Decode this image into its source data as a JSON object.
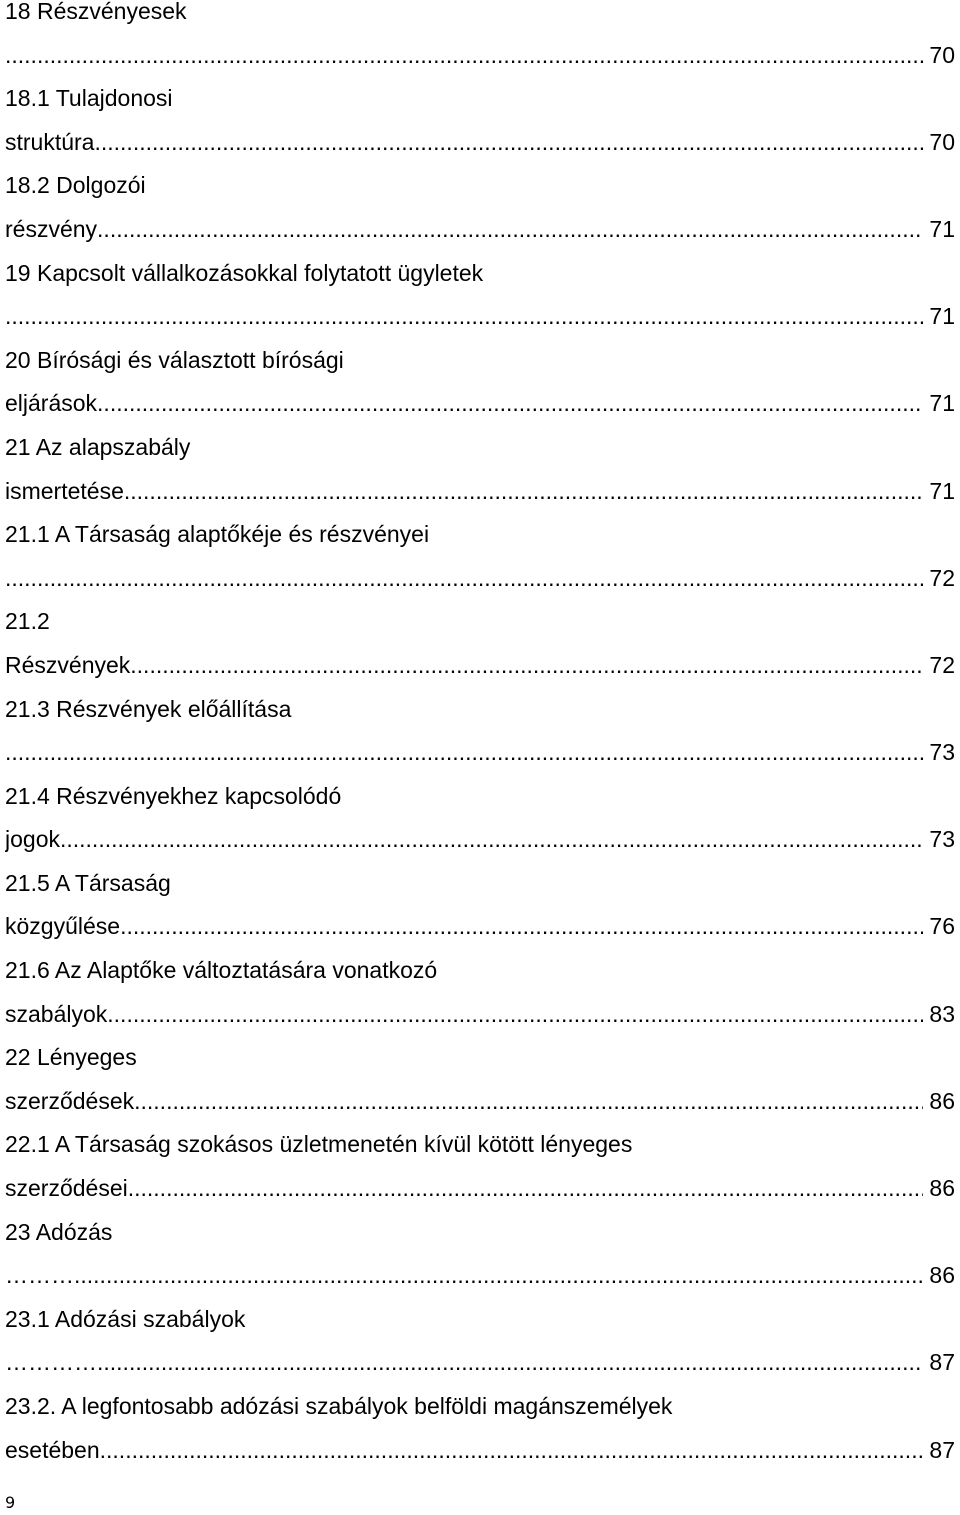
{
  "toc": {
    "entries": [
      {
        "text": "18 Részvényesek",
        "trailing": "",
        "page": ""
      },
      {
        "text": "",
        "trailing": "",
        "page": "70"
      },
      {
        "text": "18.1 Tulajdonosi",
        "trailing": "",
        "page": ""
      },
      {
        "text": "struktúra",
        "trailing": "",
        "page": "70"
      },
      {
        "text": "18.2 Dolgozói",
        "trailing": "",
        "page": ""
      },
      {
        "text": "részvény",
        "trailing": "",
        "page": "71"
      },
      {
        "text": "19 Kapcsolt vállalkozásokkal folytatott ügyletek",
        "trailing": "",
        "page": ""
      },
      {
        "text": "",
        "trailing": "",
        "page": "71"
      },
      {
        "text": "20 Bírósági és választott bírósági",
        "trailing": "",
        "page": ""
      },
      {
        "text": "eljárások",
        "trailing": "",
        "page": "71"
      },
      {
        "text": "21 Az alapszabály",
        "trailing": "",
        "page": ""
      },
      {
        "text": "ismertetése",
        "trailing": "",
        "page": "71"
      },
      {
        "text": "21.1 A Társaság alaptőkéje és részvényei",
        "trailing": "",
        "page": ""
      },
      {
        "text": "",
        "trailing": "",
        "page": "72"
      },
      {
        "text": "21.2",
        "trailing": "",
        "page": ""
      },
      {
        "text": "Részvények",
        "trailing": "",
        "page": "72"
      },
      {
        "text": "21.3 Részvények előállítása",
        "trailing": "",
        "page": ""
      },
      {
        "text": "",
        "trailing": "",
        "page": "73"
      },
      {
        "text": "21.4 Részvényekhez kapcsolódó",
        "trailing": "",
        "page": ""
      },
      {
        "text": "jogok",
        "trailing": "",
        "page": "73"
      },
      {
        "text": "21.5 A Társaság",
        "trailing": "",
        "page": ""
      },
      {
        "text": "közgyűlése",
        "trailing": "",
        "page": "76"
      },
      {
        "text": "21.6 Az Alaptőke változtatására vonatkozó",
        "trailing": "",
        "page": ""
      },
      {
        "text": "szabályok",
        "trailing": "",
        "page": "83"
      },
      {
        "text": "22 Lényeges",
        "trailing": "",
        "page": ""
      },
      {
        "text": "szerződések",
        "trailing": "",
        "page": "86"
      },
      {
        "text": "22.1 A Társaság szokásos üzletmenetén kívül kötött lényeges",
        "trailing": "",
        "page": ""
      },
      {
        "text": "szerződései",
        "trailing": "",
        "page": "86"
      },
      {
        "text": "23 Adózás",
        "trailing": "",
        "page": ""
      },
      {
        "text": "………",
        "trailing": "",
        "page": "86"
      },
      {
        "text": "23.1 Adózási szabályok",
        "trailing": "",
        "page": ""
      },
      {
        "text": "…………",
        "trailing": "",
        "page": "87"
      },
      {
        "text": "23.2. A legfontosabb adózási szabályok belföldi magánszemélyek",
        "trailing": "",
        "page": ""
      },
      {
        "text": "esetében",
        "trailing": "",
        "page": "87"
      }
    ]
  },
  "footer": {
    "page_number": "9"
  }
}
